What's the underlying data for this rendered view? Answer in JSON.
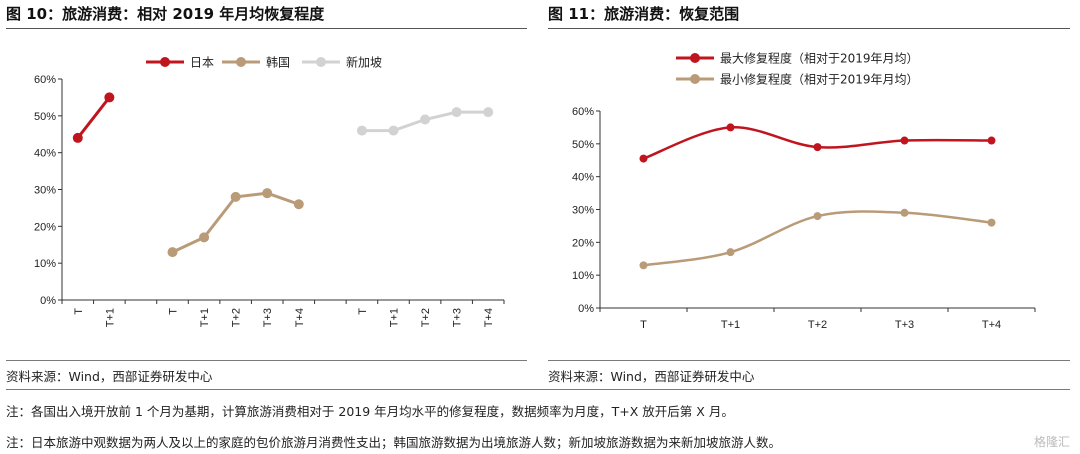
{
  "left_panel": {
    "title": "图 10：旅游消费：相对 2019 年月均恢复程度",
    "source": "资料来源：Wind，西部证券研发中心"
  },
  "right_panel": {
    "title": "图 11：旅游消费：恢复范围",
    "source": "资料来源：Wind，西部证券研发中心"
  },
  "notes": [
    "注：各国出入境开放前 1 个月为基期，计算旅游消费相对于 2019 年月均水平的修复程度，数据频率为月度，T+X 放开后第 X 月。",
    "注：日本旅游中观数据为两人及以上的家庭的包价旅游月消费性支出；韩国旅游数据为出境旅游人数；新加坡旅游数据为来新加坡旅游人数。"
  ],
  "watermark": "格隆汇",
  "chart_data": [
    {
      "type": "line",
      "title": "图 10：旅游消费：相对 2019 年月均恢复程度",
      "xlabel": "",
      "ylabel": "",
      "ylim": [
        0,
        0.6
      ],
      "yticks": [
        "0%",
        "10%",
        "20%",
        "30%",
        "40%",
        "50%",
        "60%"
      ],
      "categories": [
        "T",
        "T+1",
        "",
        "T",
        "T+1",
        "T+2",
        "T+3",
        "T+4",
        "",
        "T",
        "T+1",
        "T+2",
        "T+3",
        "T+4"
      ],
      "legend_position": "top",
      "grid": false,
      "series": [
        {
          "name": "日本",
          "color": "#c0141e",
          "values": [
            0.44,
            0.55,
            null,
            null,
            null,
            null,
            null,
            null,
            null,
            null,
            null,
            null,
            null,
            null
          ]
        },
        {
          "name": "韩国",
          "color": "#b99b78",
          "values": [
            null,
            null,
            null,
            0.13,
            0.17,
            0.28,
            0.29,
            0.26,
            null,
            null,
            null,
            null,
            null,
            null
          ]
        },
        {
          "name": "新加坡",
          "color": "#d2d2d2",
          "values": [
            null,
            null,
            null,
            null,
            null,
            null,
            null,
            null,
            null,
            0.46,
            0.46,
            0.49,
            0.51,
            0.51
          ]
        }
      ]
    },
    {
      "type": "line",
      "title": "图 11：旅游消费：恢复范围",
      "xlabel": "",
      "ylabel": "",
      "ylim": [
        0,
        0.6
      ],
      "yticks": [
        "0%",
        "10%",
        "20%",
        "30%",
        "40%",
        "50%",
        "60%"
      ],
      "categories": [
        "T",
        "T+1",
        "T+2",
        "T+3",
        "T+4"
      ],
      "legend_position": "top",
      "grid": false,
      "smooth": true,
      "series": [
        {
          "name": "最大修复程度（相对于2019年月均）",
          "color": "#c0141e",
          "values": [
            0.455,
            0.55,
            0.49,
            0.51,
            0.51
          ]
        },
        {
          "name": "最小修复程度（相对于2019年月均）",
          "color": "#b99b78",
          "values": [
            0.13,
            0.17,
            0.28,
            0.29,
            0.26
          ]
        }
      ]
    }
  ]
}
